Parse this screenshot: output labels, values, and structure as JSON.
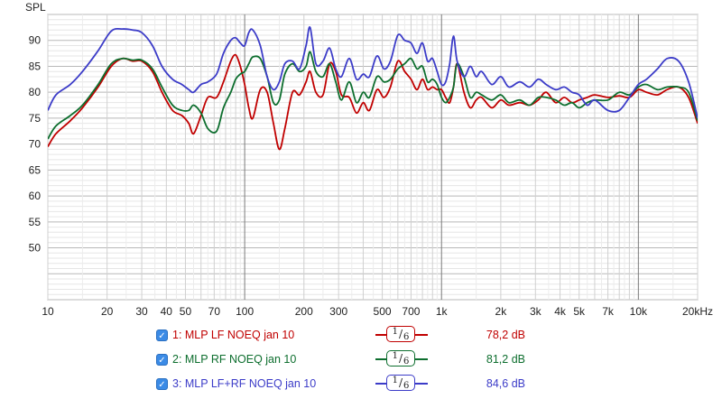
{
  "chart_data": {
    "type": "line",
    "ylabel": "SPL",
    "x_scale": "log",
    "xlim": [
      10,
      20000
    ],
    "ylim": [
      40,
      95
    ],
    "y_ticks": [
      50,
      55,
      60,
      65,
      70,
      75,
      80,
      85,
      90
    ],
    "x_ticks": [
      {
        "v": 10,
        "l": "10"
      },
      {
        "v": 20,
        "l": "20"
      },
      {
        "v": 30,
        "l": "30"
      },
      {
        "v": 40,
        "l": "40"
      },
      {
        "v": 50,
        "l": "50"
      },
      {
        "v": 70,
        "l": "70"
      },
      {
        "v": 100,
        "l": "100"
      },
      {
        "v": 200,
        "l": "200"
      },
      {
        "v": 300,
        "l": "300"
      },
      {
        "v": 500,
        "l": "500"
      },
      {
        "v": 700,
        "l": "700"
      },
      {
        "v": 1000,
        "l": "1k"
      },
      {
        "v": 2000,
        "l": "2k"
      },
      {
        "v": 3000,
        "l": "3k"
      },
      {
        "v": 4000,
        "l": "4k"
      },
      {
        "v": 5000,
        "l": "5k"
      },
      {
        "v": 7000,
        "l": "7k"
      },
      {
        "v": 10000,
        "l": "10k"
      },
      {
        "v": 20000,
        "l": "20kHz"
      }
    ],
    "grid": true,
    "series": [
      {
        "name": "1: MLP LF NOEQ jan 10",
        "color": "#c00000",
        "x": [
          10,
          11,
          13,
          15,
          18,
          21,
          24,
          27,
          30,
          34,
          38,
          43,
          48,
          52,
          55,
          60,
          65,
          72,
          78,
          85,
          90,
          95,
          100,
          105,
          110,
          120,
          130,
          140,
          150,
          160,
          175,
          190,
          205,
          215,
          230,
          250,
          270,
          290,
          310,
          340,
          370,
          400,
          430,
          470,
          510,
          550,
          600,
          650,
          700,
          750,
          800,
          850,
          900,
          950,
          1000,
          1050,
          1100,
          1150,
          1200,
          1300,
          1400,
          1500,
          1600,
          1800,
          2000,
          2200,
          2500,
          2800,
          3100,
          3400,
          3800,
          4200,
          4600,
          5000,
          5500,
          6000,
          7000,
          8000,
          9000,
          10000,
          11000,
          12500,
          14000,
          16000,
          18000,
          20000
        ],
        "y": [
          69.5,
          72,
          74.5,
          77,
          81,
          85,
          86.5,
          86,
          86,
          84,
          80,
          76.5,
          75.5,
          74,
          72,
          75.5,
          79,
          79,
          82,
          86,
          87.2,
          85,
          81.5,
          77,
          75,
          80.5,
          80,
          74,
          69,
          73,
          80,
          79.5,
          82,
          84,
          80,
          79.5,
          85.5,
          84,
          79.5,
          79,
          76,
          78,
          76.5,
          80.5,
          79,
          81,
          86,
          84,
          82.5,
          80.5,
          82.5,
          80.5,
          81,
          80.5,
          80.5,
          79,
          78,
          81,
          85.5,
          80,
          77,
          78.5,
          79,
          77,
          78.5,
          77.5,
          78,
          77.5,
          78.5,
          80,
          78,
          79,
          78,
          78.5,
          79,
          79.5,
          79,
          79.3,
          79,
          80.5,
          80,
          79.5,
          80.5,
          81,
          79,
          74
        ]
      },
      {
        "name": "2: MLP RF NOEQ jan 10",
        "color": "#0d6e2e",
        "x": [
          10,
          11,
          13,
          15,
          18,
          21,
          24,
          27,
          30,
          34,
          38,
          43,
          48,
          52,
          55,
          60,
          65,
          72,
          78,
          85,
          90,
          95,
          100,
          105,
          110,
          120,
          130,
          140,
          150,
          160,
          175,
          190,
          205,
          215,
          230,
          250,
          270,
          290,
          310,
          340,
          370,
          400,
          430,
          470,
          510,
          550,
          600,
          650,
          700,
          750,
          800,
          850,
          900,
          950,
          1000,
          1050,
          1100,
          1150,
          1200,
          1300,
          1400,
          1500,
          1600,
          1800,
          2000,
          2200,
          2500,
          2800,
          3100,
          3400,
          3800,
          4200,
          4600,
          5000,
          5500,
          6000,
          7000,
          8000,
          9000,
          10000,
          11000,
          12500,
          14000,
          16000,
          18000,
          20000
        ],
        "y": [
          71,
          73.5,
          75.5,
          77.5,
          81.5,
          85.5,
          86.5,
          86.2,
          86.2,
          84.5,
          81,
          77.5,
          76.5,
          76.5,
          77.5,
          76,
          73,
          72.5,
          77,
          80,
          82.5,
          83.5,
          84,
          85.5,
          86.8,
          86.5,
          83,
          78,
          78.5,
          83.5,
          85.5,
          84,
          85,
          87.8,
          84,
          83,
          85.5,
          82,
          78.5,
          82,
          78,
          80,
          79,
          83,
          82,
          82.5,
          84.5,
          85.5,
          86.5,
          84.5,
          85,
          82,
          82.5,
          81.5,
          79,
          78,
          79,
          81,
          85.5,
          83,
          79,
          80,
          79.5,
          78.5,
          79.5,
          78,
          78.5,
          77.5,
          79,
          79,
          78.5,
          77.5,
          78,
          77,
          78,
          78.5,
          78.5,
          80,
          79.5,
          81,
          81.5,
          80.5,
          81,
          81,
          80,
          74.5
        ]
      },
      {
        "name": "3: MLP LF+RF NOEQ jan 10",
        "color": "#3c3cc8",
        "x": [
          10,
          11,
          13,
          15,
          18,
          21,
          24,
          27,
          30,
          34,
          38,
          43,
          48,
          52,
          55,
          60,
          65,
          72,
          78,
          85,
          90,
          95,
          100,
          105,
          110,
          120,
          130,
          140,
          150,
          160,
          175,
          190,
          205,
          215,
          230,
          250,
          270,
          290,
          310,
          340,
          370,
          400,
          430,
          470,
          510,
          550,
          600,
          650,
          700,
          750,
          800,
          850,
          900,
          950,
          1000,
          1050,
          1100,
          1150,
          1200,
          1300,
          1400,
          1500,
          1600,
          1800,
          2000,
          2200,
          2500,
          2800,
          3100,
          3400,
          3800,
          4200,
          4600,
          5000,
          5500,
          6000,
          7000,
          8000,
          9000,
          10000,
          11000,
          12500,
          14000,
          16000,
          18000,
          20000
        ],
        "y": [
          76.5,
          79.5,
          81.5,
          84,
          88,
          91.8,
          92.2,
          92,
          91.5,
          89,
          85,
          82.5,
          81.5,
          80.5,
          80,
          81.5,
          82,
          83.5,
          87.5,
          90,
          90.5,
          89.5,
          89,
          91.5,
          92,
          89,
          83,
          80.5,
          82,
          85.5,
          86,
          84.5,
          89,
          92.5,
          85.5,
          86,
          88.5,
          84.5,
          83,
          86.5,
          82.5,
          83.5,
          83,
          87,
          84.5,
          86,
          91,
          90,
          89.5,
          87.5,
          89.5,
          86,
          86.5,
          84,
          81.5,
          82,
          85.5,
          90.8,
          86,
          83,
          85,
          83,
          84,
          81.5,
          83,
          81,
          82,
          81,
          82.5,
          81.5,
          80.5,
          81,
          80,
          79.5,
          77.5,
          78.5,
          76.5,
          76.5,
          79,
          81.5,
          82.5,
          84.5,
          86.5,
          86,
          82,
          75
        ]
      }
    ]
  },
  "legend": [
    {
      "label": "1: MLP LF NOEQ jan 10",
      "color": "#c00000",
      "smoothing_num": "1",
      "smoothing_den": "6",
      "value": "78,2 dB",
      "check": "✓"
    },
    {
      "label": "2: MLP RF NOEQ jan 10",
      "color": "#0d6e2e",
      "smoothing_num": "1",
      "smoothing_den": "6",
      "value": "81,2 dB",
      "check": "✓"
    },
    {
      "label": "3: MLP LF+RF NOEQ jan 10",
      "color": "#3c3cc8",
      "smoothing_num": "1",
      "smoothing_den": "6",
      "value": "84,6 dB",
      "check": "✓"
    }
  ]
}
